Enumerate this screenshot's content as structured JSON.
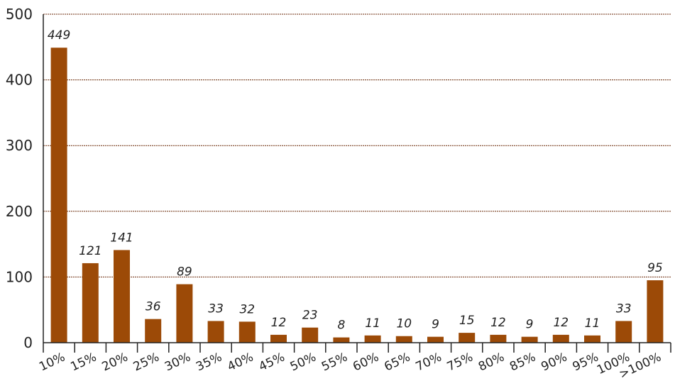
{
  "chart_data": {
    "type": "bar",
    "categories": [
      "10%",
      "15%",
      "20%",
      "25%",
      "30%",
      "35%",
      "40%",
      "45%",
      "50%",
      "55%",
      "60%",
      "65%",
      "70%",
      "75%",
      "80%",
      "85%",
      "90%",
      "95%",
      "100%",
      ">100%"
    ],
    "values": [
      449,
      121,
      141,
      36,
      89,
      33,
      32,
      12,
      23,
      8,
      11,
      10,
      9,
      15,
      12,
      9,
      12,
      11,
      33,
      95
    ],
    "title": "",
    "xlabel": "",
    "ylabel": "",
    "ylim": [
      0,
      500
    ],
    "yticks": [
      0,
      100,
      200,
      300,
      400,
      500
    ],
    "grid": true,
    "bar_color": "#9c4a07",
    "grid_color": "#6b2a08"
  }
}
